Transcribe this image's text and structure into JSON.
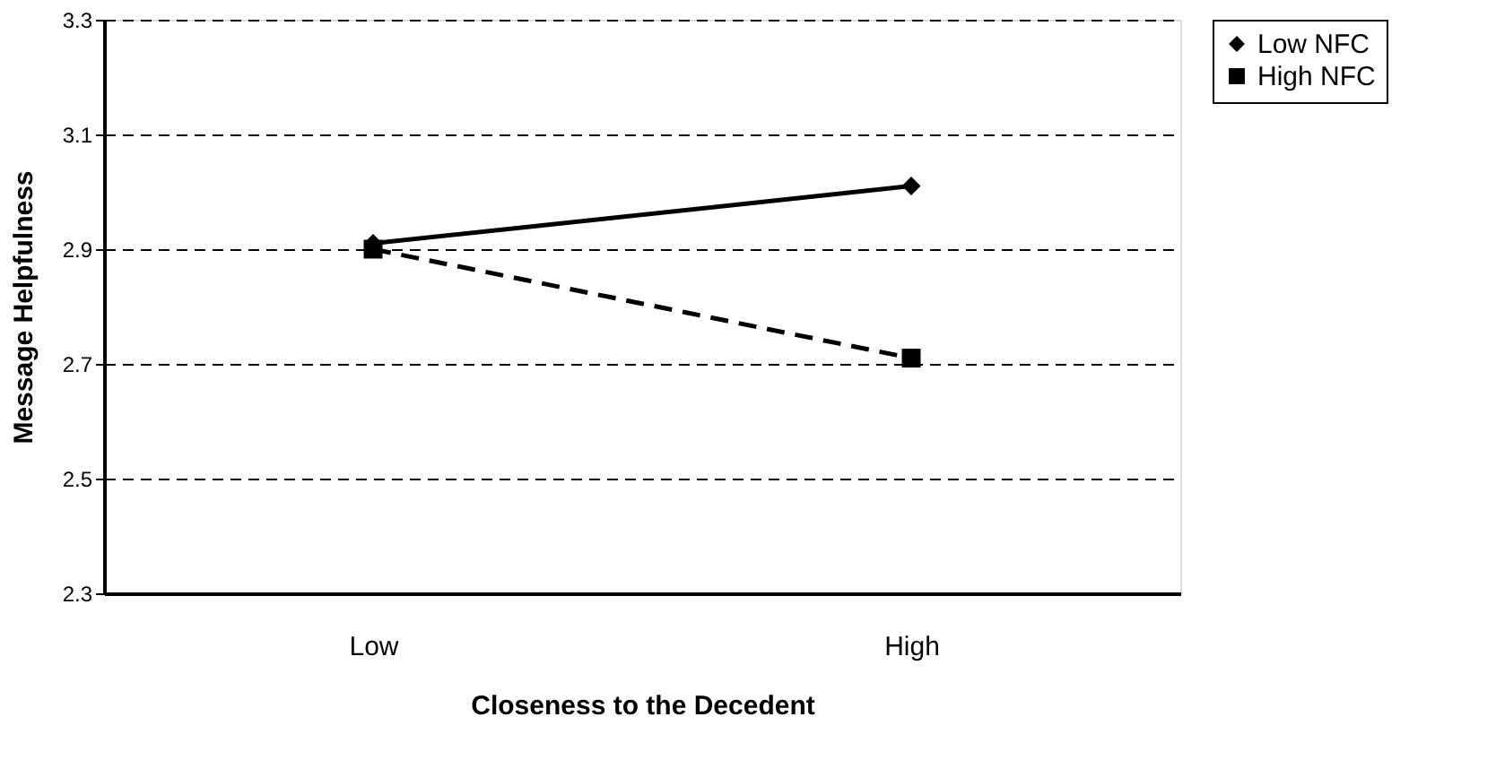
{
  "chart_data": {
    "type": "line",
    "xlabel": "Closeness to the Decedent",
    "ylabel": "Message Helpfulness",
    "categories": [
      "Low",
      "High"
    ],
    "series": [
      {
        "name": "Low NFC",
        "color": "#000000",
        "values": [
          2.91,
          3.01
        ],
        "marker": "diamond",
        "line_style": "solid"
      },
      {
        "name": "High NFC",
        "color": "#000000",
        "values": [
          2.9,
          2.71
        ],
        "marker": "square",
        "line_style": "dashed"
      }
    ],
    "ylim": [
      2.3,
      3.3
    ],
    "yticks": [
      {
        "value": 2.3,
        "label": "2.3"
      },
      {
        "value": 2.5,
        "label": "2.5"
      },
      {
        "value": 2.7,
        "label": "2.7"
      },
      {
        "value": 2.9,
        "label": "2.9"
      },
      {
        "value": 3.1,
        "label": "3.1"
      },
      {
        "value": 3.3,
        "label": "3.3"
      }
    ],
    "grid": "y",
    "legend": "right"
  }
}
